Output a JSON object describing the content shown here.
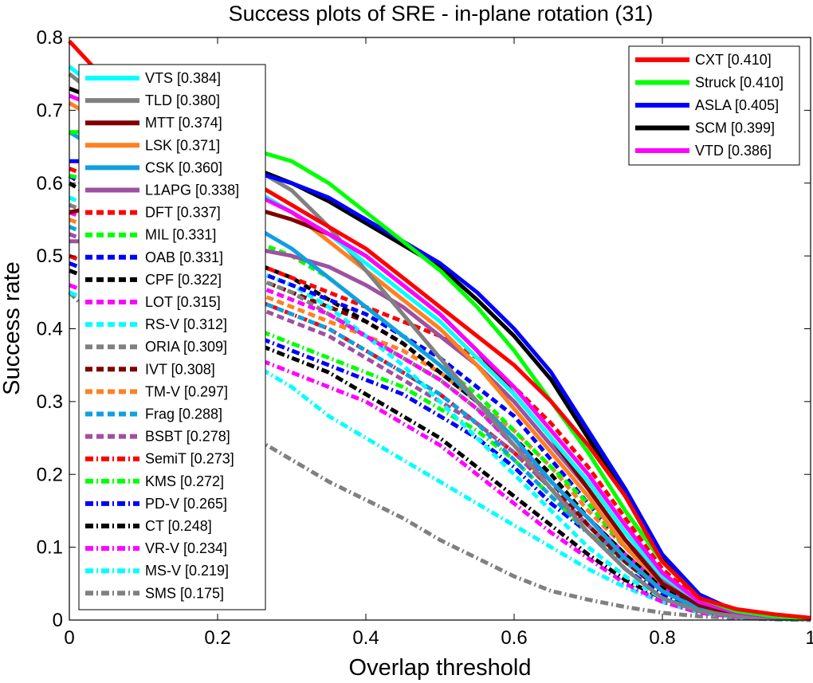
{
  "chart_data": {
    "type": "line",
    "title": "Success plots of SRE - in-plane rotation (31)",
    "xlabel": "Overlap threshold",
    "ylabel": "Success rate",
    "xlim": [
      0,
      1
    ],
    "ylim": [
      0,
      0.8
    ],
    "grid": false,
    "x_ticks": [
      "0",
      "0.2",
      "0.4",
      "0.6",
      "0.8",
      "1"
    ],
    "y_ticks": [
      "0",
      "0.1",
      "0.2",
      "0.3",
      "0.4",
      "0.5",
      "0.6",
      "0.7",
      "0.8"
    ],
    "x": [
      0,
      0.05,
      0.1,
      0.15,
      0.2,
      0.25,
      0.3,
      0.35,
      0.4,
      0.45,
      0.5,
      0.55,
      0.6,
      0.65,
      0.7,
      0.75,
      0.8,
      0.85,
      0.9,
      0.95,
      1.0
    ],
    "legends": [
      {
        "placement": "top-right",
        "entries": [
          "CXT [0.410]",
          "Struck [0.410]",
          "ASLA [0.405]",
          "SCM [0.399]",
          "VTD [0.386]"
        ]
      },
      {
        "placement": "left",
        "entries": [
          "VTS [0.384]",
          "TLD [0.380]",
          "MTT [0.374]",
          "LSK [0.371]",
          "CSK [0.360]",
          "L1APG [0.338]",
          "DFT [0.337]",
          "MIL [0.331]",
          "OAB [0.331]",
          "CPF [0.322]",
          "LOT [0.315]",
          "RS-V [0.312]",
          "ORIA [0.309]",
          "IVT [0.308]",
          "TM-V [0.297]",
          "Frag [0.288]",
          "BSBT [0.278]",
          "SemiT [0.273]",
          "KMS [0.272]",
          "PD-V [0.265]",
          "CT [0.248]",
          "VR-V [0.234]",
          "MS-V [0.219]",
          "SMS [0.175]"
        ]
      }
    ],
    "series": [
      {
        "name": "CXT [0.410]",
        "color": "#ff0000",
        "style": "solid",
        "values": [
          0.795,
          0.74,
          0.7,
          0.66,
          0.63,
          0.6,
          0.57,
          0.54,
          0.51,
          0.47,
          0.43,
          0.39,
          0.35,
          0.3,
          0.24,
          0.17,
          0.08,
          0.03,
          0.015,
          0.008,
          0.003
        ]
      },
      {
        "name": "Struck [0.410]",
        "color": "#00ff00",
        "style": "solid",
        "values": [
          0.67,
          0.67,
          0.665,
          0.66,
          0.655,
          0.645,
          0.63,
          0.6,
          0.56,
          0.52,
          0.48,
          0.43,
          0.37,
          0.3,
          0.23,
          0.15,
          0.08,
          0.03,
          0.012,
          0.005,
          0.002
        ]
      },
      {
        "name": "ASLA [0.405]",
        "color": "#0000ff",
        "style": "solid",
        "values": [
          0.63,
          0.63,
          0.63,
          0.625,
          0.62,
          0.615,
          0.6,
          0.58,
          0.55,
          0.52,
          0.49,
          0.45,
          0.4,
          0.34,
          0.26,
          0.18,
          0.09,
          0.035,
          0.012,
          0.005,
          0.002
        ]
      },
      {
        "name": "SCM [0.399]",
        "color": "#000000",
        "style": "solid",
        "values": [
          0.73,
          0.71,
          0.69,
          0.66,
          0.64,
          0.62,
          0.6,
          0.575,
          0.545,
          0.515,
          0.485,
          0.44,
          0.39,
          0.33,
          0.25,
          0.17,
          0.085,
          0.03,
          0.012,
          0.005,
          0.002
        ]
      },
      {
        "name": "VTD [0.386]",
        "color": "#ff00ff",
        "style": "solid",
        "values": [
          0.72,
          0.7,
          0.67,
          0.64,
          0.61,
          0.585,
          0.56,
          0.53,
          0.5,
          0.46,
          0.42,
          0.37,
          0.32,
          0.26,
          0.2,
          0.13,
          0.065,
          0.025,
          0.01,
          0.004,
          0.002
        ]
      },
      {
        "name": "VTS [0.384]",
        "color": "#00ffff",
        "style": "solid",
        "values": [
          0.76,
          0.72,
          0.68,
          0.65,
          0.62,
          0.59,
          0.56,
          0.53,
          0.49,
          0.45,
          0.41,
          0.36,
          0.31,
          0.25,
          0.19,
          0.12,
          0.06,
          0.025,
          0.01,
          0.004,
          0.002
        ]
      },
      {
        "name": "TLD [0.380]",
        "color": "#808080",
        "style": "solid",
        "values": [
          0.75,
          0.71,
          0.68,
          0.66,
          0.64,
          0.62,
          0.59,
          0.54,
          0.48,
          0.42,
          0.36,
          0.3,
          0.24,
          0.18,
          0.12,
          0.07,
          0.03,
          0.012,
          0.005,
          0.002,
          0.001
        ]
      },
      {
        "name": "MTT [0.374]",
        "color": "#800000",
        "style": "solid",
        "values": [
          0.56,
          0.57,
          0.575,
          0.575,
          0.57,
          0.565,
          0.55,
          0.53,
          0.5,
          0.46,
          0.42,
          0.37,
          0.31,
          0.25,
          0.18,
          0.11,
          0.05,
          0.02,
          0.008,
          0.003,
          0.001
        ]
      },
      {
        "name": "LSK [0.371]",
        "color": "#ff8020",
        "style": "solid",
        "values": [
          0.71,
          0.68,
          0.66,
          0.63,
          0.61,
          0.59,
          0.56,
          0.52,
          0.48,
          0.44,
          0.4,
          0.35,
          0.29,
          0.23,
          0.17,
          0.1,
          0.05,
          0.02,
          0.008,
          0.003,
          0.001
        ]
      },
      {
        "name": "CSK [0.360]",
        "color": "#10a0e0",
        "style": "solid",
        "values": [
          0.67,
          0.64,
          0.61,
          0.58,
          0.56,
          0.54,
          0.51,
          0.47,
          0.43,
          0.39,
          0.35,
          0.3,
          0.25,
          0.19,
          0.14,
          0.085,
          0.04,
          0.015,
          0.006,
          0.002,
          0.001
        ]
      },
      {
        "name": "L1APG [0.338]",
        "color": "#a050a0",
        "style": "solid",
        "values": [
          0.52,
          0.52,
          0.52,
          0.52,
          0.515,
          0.51,
          0.5,
          0.485,
          0.46,
          0.43,
          0.39,
          0.35,
          0.3,
          0.24,
          0.18,
          0.11,
          0.055,
          0.02,
          0.008,
          0.003,
          0.001
        ]
      },
      {
        "name": "DFT [0.337]",
        "color": "#ff0000",
        "style": "dash",
        "values": [
          0.62,
          0.6,
          0.57,
          0.54,
          0.51,
          0.49,
          0.47,
          0.45,
          0.43,
          0.41,
          0.39,
          0.36,
          0.32,
          0.27,
          0.21,
          0.14,
          0.07,
          0.025,
          0.01,
          0.004,
          0.001
        ]
      },
      {
        "name": "MIL [0.331]",
        "color": "#00ff00",
        "style": "dash",
        "values": [
          0.61,
          0.6,
          0.58,
          0.56,
          0.54,
          0.52,
          0.5,
          0.47,
          0.43,
          0.39,
          0.35,
          0.31,
          0.26,
          0.21,
          0.16,
          0.1,
          0.05,
          0.02,
          0.008,
          0.003,
          0.001
        ]
      },
      {
        "name": "OAB [0.331]",
        "color": "#0000ff",
        "style": "dash",
        "values": [
          0.61,
          0.58,
          0.55,
          0.52,
          0.5,
          0.48,
          0.46,
          0.44,
          0.42,
          0.39,
          0.36,
          0.32,
          0.28,
          0.22,
          0.16,
          0.1,
          0.05,
          0.02,
          0.008,
          0.003,
          0.001
        ]
      },
      {
        "name": "CPF [0.322]",
        "color": "#000000",
        "style": "dash",
        "values": [
          0.6,
          0.57,
          0.55,
          0.53,
          0.51,
          0.49,
          0.47,
          0.44,
          0.41,
          0.38,
          0.34,
          0.3,
          0.25,
          0.2,
          0.14,
          0.09,
          0.045,
          0.018,
          0.007,
          0.003,
          0.001
        ]
      },
      {
        "name": "LOT [0.315]",
        "color": "#ff00ff",
        "style": "dash",
        "values": [
          0.56,
          0.54,
          0.52,
          0.5,
          0.48,
          0.46,
          0.44,
          0.42,
          0.39,
          0.36,
          0.33,
          0.29,
          0.24,
          0.19,
          0.14,
          0.09,
          0.045,
          0.018,
          0.007,
          0.003,
          0.001
        ]
      },
      {
        "name": "RS-V [0.312]",
        "color": "#00ffff",
        "style": "dash",
        "values": [
          0.58,
          0.56,
          0.54,
          0.52,
          0.5,
          0.48,
          0.46,
          0.43,
          0.39,
          0.35,
          0.3,
          0.25,
          0.2,
          0.15,
          0.1,
          0.06,
          0.03,
          0.012,
          0.005,
          0.002,
          0.001
        ]
      },
      {
        "name": "ORIA [0.309]",
        "color": "#808080",
        "style": "dash",
        "values": [
          0.57,
          0.55,
          0.53,
          0.51,
          0.49,
          0.47,
          0.45,
          0.42,
          0.39,
          0.36,
          0.33,
          0.29,
          0.24,
          0.19,
          0.14,
          0.09,
          0.045,
          0.018,
          0.007,
          0.003,
          0.001
        ]
      },
      {
        "name": "IVT [0.308]",
        "color": "#800000",
        "style": "dash",
        "values": [
          0.56,
          0.54,
          0.52,
          0.5,
          0.48,
          0.47,
          0.45,
          0.43,
          0.41,
          0.38,
          0.34,
          0.3,
          0.25,
          0.19,
          0.13,
          0.08,
          0.04,
          0.015,
          0.006,
          0.002,
          0.001
        ]
      },
      {
        "name": "TM-V [0.297]",
        "color": "#ff8020",
        "style": "dash",
        "values": [
          0.55,
          0.53,
          0.51,
          0.49,
          0.47,
          0.45,
          0.43,
          0.41,
          0.39,
          0.37,
          0.34,
          0.3,
          0.26,
          0.21,
          0.15,
          0.1,
          0.05,
          0.02,
          0.008,
          0.003,
          0.001
        ]
      },
      {
        "name": "Frag [0.288]",
        "color": "#10a0e0",
        "style": "dash",
        "values": [
          0.54,
          0.52,
          0.5,
          0.48,
          0.46,
          0.44,
          0.42,
          0.4,
          0.37,
          0.34,
          0.31,
          0.27,
          0.22,
          0.17,
          0.12,
          0.08,
          0.04,
          0.015,
          0.006,
          0.002,
          0.001
        ]
      },
      {
        "name": "BSBT [0.278]",
        "color": "#a050a0",
        "style": "dash",
        "values": [
          0.53,
          0.51,
          0.49,
          0.47,
          0.45,
          0.43,
          0.41,
          0.39,
          0.36,
          0.33,
          0.3,
          0.27,
          0.23,
          0.18,
          0.13,
          0.08,
          0.04,
          0.015,
          0.006,
          0.002,
          0.001
        ]
      },
      {
        "name": "SemiT [0.273]",
        "color": "#ff0000",
        "style": "dashdot",
        "values": [
          0.5,
          0.48,
          0.47,
          0.46,
          0.45,
          0.44,
          0.42,
          0.4,
          0.37,
          0.34,
          0.31,
          0.27,
          0.23,
          0.18,
          0.13,
          0.08,
          0.04,
          0.015,
          0.006,
          0.002,
          0.001
        ]
      },
      {
        "name": "KMS [0.272]",
        "color": "#00ff00",
        "style": "dashdot",
        "values": [
          0.5,
          0.48,
          0.46,
          0.44,
          0.42,
          0.4,
          0.38,
          0.36,
          0.34,
          0.32,
          0.29,
          0.26,
          0.22,
          0.17,
          0.12,
          0.08,
          0.04,
          0.015,
          0.006,
          0.002,
          0.001
        ]
      },
      {
        "name": "PD-V [0.265]",
        "color": "#0000ff",
        "style": "dashdot",
        "values": [
          0.49,
          0.47,
          0.45,
          0.43,
          0.41,
          0.39,
          0.37,
          0.35,
          0.33,
          0.31,
          0.28,
          0.25,
          0.21,
          0.16,
          0.12,
          0.07,
          0.035,
          0.014,
          0.005,
          0.002,
          0.001
        ]
      },
      {
        "name": "CT [0.248]",
        "color": "#000000",
        "style": "dashdot",
        "values": [
          0.48,
          0.46,
          0.44,
          0.42,
          0.4,
          0.38,
          0.36,
          0.34,
          0.31,
          0.28,
          0.25,
          0.21,
          0.17,
          0.13,
          0.09,
          0.055,
          0.03,
          0.012,
          0.005,
          0.002,
          0.001
        ]
      },
      {
        "name": "VR-V [0.234]",
        "color": "#ff00ff",
        "style": "dashdot",
        "values": [
          0.46,
          0.44,
          0.42,
          0.4,
          0.38,
          0.36,
          0.34,
          0.32,
          0.3,
          0.27,
          0.24,
          0.2,
          0.16,
          0.12,
          0.085,
          0.05,
          0.025,
          0.01,
          0.004,
          0.002,
          0.001
        ]
      },
      {
        "name": "MS-V [0.219]",
        "color": "#00ffff",
        "style": "dashdot",
        "values": [
          0.45,
          0.43,
          0.41,
          0.39,
          0.37,
          0.35,
          0.32,
          0.28,
          0.25,
          0.22,
          0.19,
          0.16,
          0.13,
          0.1,
          0.07,
          0.045,
          0.025,
          0.01,
          0.004,
          0.002,
          0.001
        ]
      },
      {
        "name": "SMS [0.175]",
        "color": "#808080",
        "style": "dashdot",
        "values": [
          0.45,
          0.4,
          0.35,
          0.31,
          0.28,
          0.25,
          0.22,
          0.19,
          0.165,
          0.14,
          0.11,
          0.085,
          0.06,
          0.04,
          0.028,
          0.018,
          0.01,
          0.005,
          0.003,
          0.001,
          0.0
        ]
      }
    ]
  }
}
